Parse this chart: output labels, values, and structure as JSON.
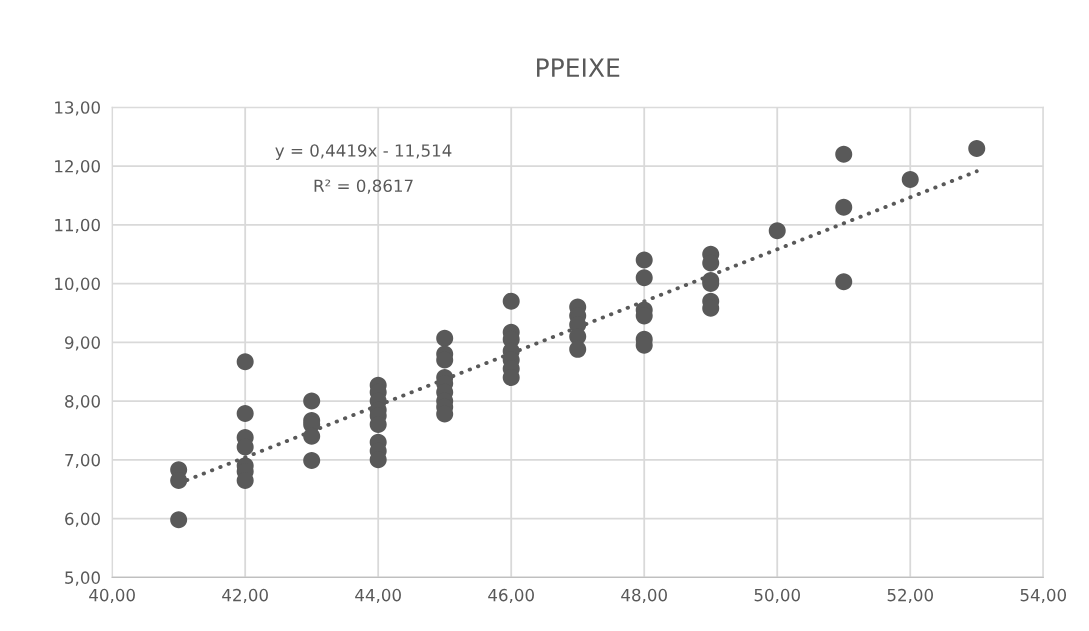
{
  "chart_data": {
    "type": "scatter",
    "title": "PPEIXE",
    "series": [
      {
        "color": "#595959",
        "marker": "circle",
        "x": [
          41,
          41,
          41,
          42,
          42,
          42,
          42,
          42,
          42,
          42,
          43,
          43,
          43,
          43,
          43,
          44,
          44,
          44,
          44,
          44,
          44,
          44,
          44,
          44,
          45,
          45,
          45,
          45,
          45,
          45,
          45,
          45,
          45,
          46,
          46,
          46,
          46,
          46,
          46,
          46,
          47,
          47,
          47,
          47,
          47,
          48,
          48,
          48,
          48,
          48,
          48,
          49,
          49,
          49,
          49,
          49,
          49,
          50,
          51,
          51,
          51,
          52,
          53
        ],
        "values": [
          6.83,
          6.65,
          5.98,
          8.67,
          7.79,
          7.38,
          7.22,
          6.9,
          6.8,
          6.65,
          8.0,
          7.67,
          7.6,
          7.4,
          6.99,
          8.27,
          8.15,
          8.0,
          7.85,
          7.75,
          7.6,
          7.3,
          7.15,
          7.0,
          9.07,
          8.8,
          8.7,
          8.4,
          8.3,
          8.15,
          8.0,
          7.9,
          7.78,
          9.7,
          9.17,
          9.05,
          8.85,
          8.7,
          8.55,
          8.4,
          9.6,
          9.45,
          9.3,
          9.1,
          8.88,
          10.4,
          10.1,
          9.55,
          9.45,
          9.05,
          8.95,
          10.5,
          10.35,
          10.05,
          10.0,
          9.7,
          9.58,
          10.9,
          12.2,
          11.3,
          10.03,
          11.77,
          12.3
        ]
      },
      {
        "type": "line",
        "color": "#595959",
        "line_style": "dotted",
        "x": [
          41,
          53
        ],
        "values": [
          6.6,
          11.91
        ]
      }
    ],
    "annotations": [
      "y = 0,4419x - 11,514",
      "R² = 0,8617"
    ],
    "xlim": [
      40,
      54
    ],
    "xticks": [
      {
        "value": 40,
        "label": "40,00"
      },
      {
        "value": 42,
        "label": "42,00"
      },
      {
        "value": 44,
        "label": "44,00"
      },
      {
        "value": 46,
        "label": "46,00"
      },
      {
        "value": 48,
        "label": "48,00"
      },
      {
        "value": 50,
        "label": "50,00"
      },
      {
        "value": 52,
        "label": "52,00"
      },
      {
        "value": 54,
        "label": "54,00"
      }
    ],
    "ylim": [
      5,
      13
    ],
    "yticks": [
      {
        "value": 5,
        "label": "5,00"
      },
      {
        "value": 6,
        "label": "6,00"
      },
      {
        "value": 7,
        "label": "7,00"
      },
      {
        "value": 8,
        "label": "8,00"
      },
      {
        "value": 9,
        "label": "9,00"
      },
      {
        "value": 10,
        "label": "10,00"
      },
      {
        "value": 11,
        "label": "11,00"
      },
      {
        "value": 12,
        "label": "12,00"
      },
      {
        "value": 13,
        "label": "13,00"
      }
    ],
    "grid": true,
    "legend": false
  }
}
